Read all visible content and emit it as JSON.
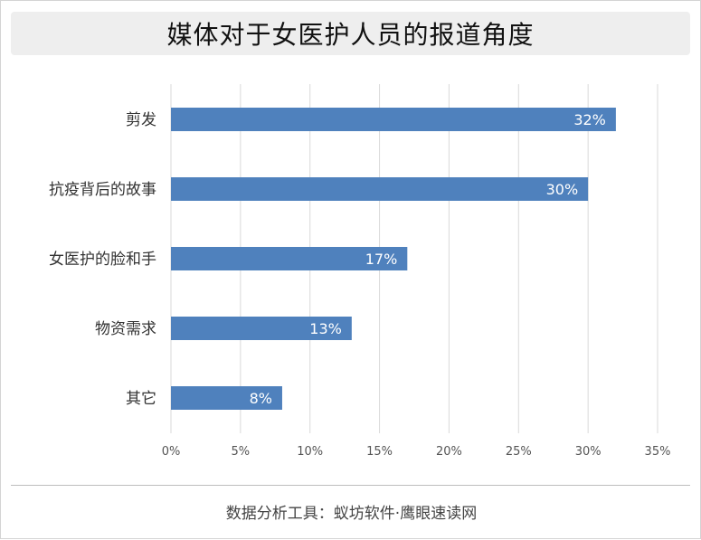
{
  "title": "媒体对于女医护人员的报道角度",
  "footer": "数据分析工具：蚁坊软件·鹰眼速读网",
  "colors": {
    "bar": "#4f81bd",
    "grid": "#d9d9d9",
    "title_bg": "#eeeeee"
  },
  "chart_data": {
    "type": "bar",
    "orientation": "horizontal",
    "title": "媒体对于女医护人员的报道角度",
    "categories": [
      "剪发",
      "抗疫背后的故事",
      "女医护的脸和手",
      "物资需求",
      "其它"
    ],
    "values": [
      32,
      30,
      17,
      13,
      8
    ],
    "data_labels": [
      "32%",
      "30%",
      "17%",
      "13%",
      "8%"
    ],
    "xlim": [
      0,
      35
    ],
    "xticks": [
      0,
      5,
      10,
      15,
      20,
      25,
      30,
      35
    ],
    "xtick_labels": [
      "0%",
      "5%",
      "10%",
      "15%",
      "20%",
      "25%",
      "30%",
      "35%"
    ],
    "xlabel": "",
    "ylabel": "",
    "grid": "vertical",
    "legend": "none"
  }
}
